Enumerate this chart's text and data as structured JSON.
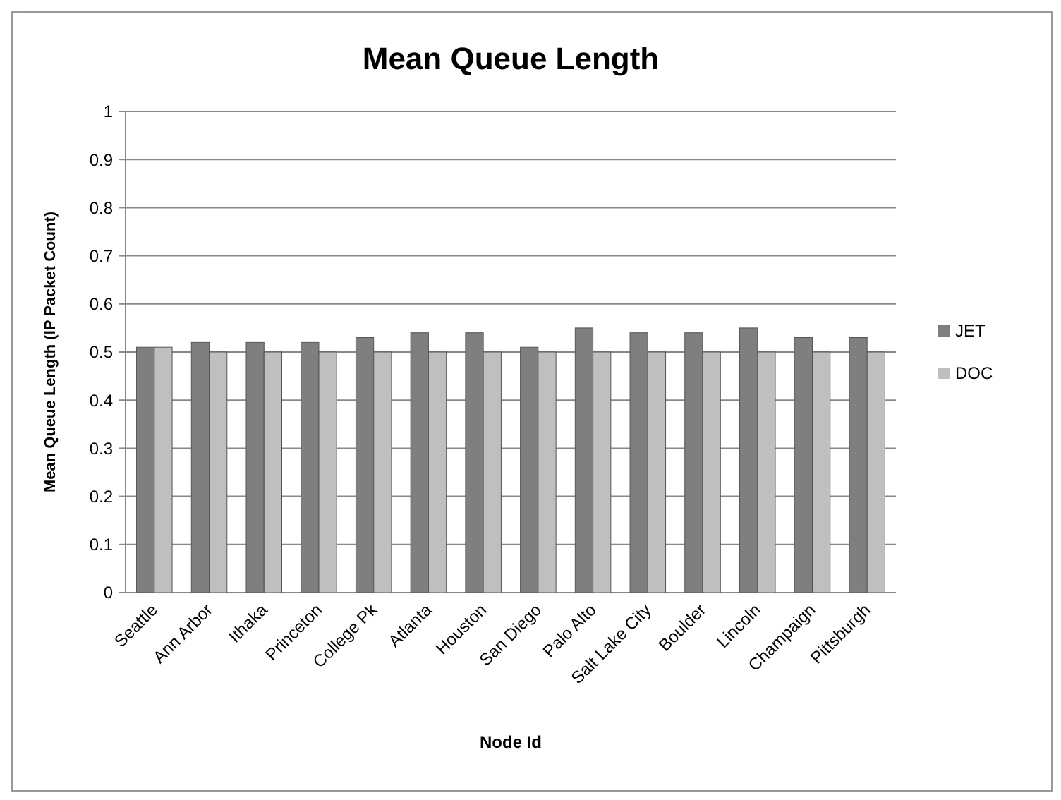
{
  "chart_data": {
    "type": "bar",
    "title": "Mean Queue Length",
    "xlabel": "Node Id",
    "ylabel": "Mean Queue Length (IP Packet Count)",
    "categories": [
      "Seattle",
      "Ann Arbor",
      "Ithaka",
      "Princeton",
      "College Pk",
      "Atlanta",
      "Houston",
      "San Diego",
      "Palo Alto",
      "Salt Lake City",
      "Boulder",
      "Lincoln",
      "Champaign",
      "Pittsburgh"
    ],
    "series": [
      {
        "name": "JET",
        "color": "#7f7f7f",
        "values": [
          0.51,
          0.52,
          0.52,
          0.52,
          0.53,
          0.54,
          0.54,
          0.51,
          0.55,
          0.54,
          0.54,
          0.55,
          0.53,
          0.53
        ]
      },
      {
        "name": "DOC",
        "color": "#bfbfbf",
        "values": [
          0.51,
          0.5,
          0.5,
          0.5,
          0.5,
          0.5,
          0.5,
          0.5,
          0.5,
          0.5,
          0.5,
          0.5,
          0.5,
          0.5
        ]
      }
    ],
    "ylim": [
      0,
      1
    ],
    "yticks": [
      0,
      0.1,
      0.2,
      0.3,
      0.4,
      0.5,
      0.6,
      0.7,
      0.8,
      0.9,
      1
    ],
    "grid": "y",
    "legend": "right"
  }
}
